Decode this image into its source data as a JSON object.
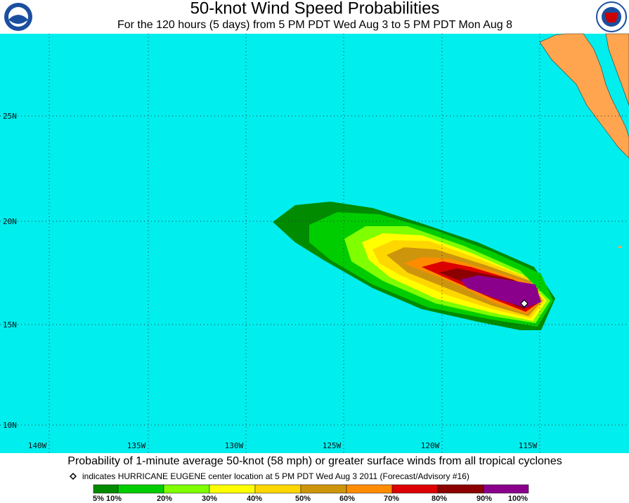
{
  "header": {
    "title": "50-knot Wind Speed Probabilities",
    "subtitle": "For the 120 hours (5 days) from 5 PM PDT Wed Aug 3 to 5 PM PDT Mon Aug 8"
  },
  "map": {
    "lat_labels": [
      "25N",
      "20N",
      "15N",
      "10N"
    ],
    "lon_labels": [
      "140W",
      "135W",
      "130W",
      "125W",
      "120W",
      "115W"
    ]
  },
  "footer": {
    "caption": "Probability of 1-minute average 50-knot (58 mph) or greater surface winds from all tropical cyclones",
    "note": "indicates HURRICANE EUGENE center location at 5 PM PDT Wed Aug 3 2011 (Forecast/Advisory #16)",
    "scale_labels": [
      "5%",
      "10%",
      "20%",
      "30%",
      "40%",
      "50%",
      "60%",
      "70%",
      "80%",
      "90%",
      "100%"
    ]
  }
}
